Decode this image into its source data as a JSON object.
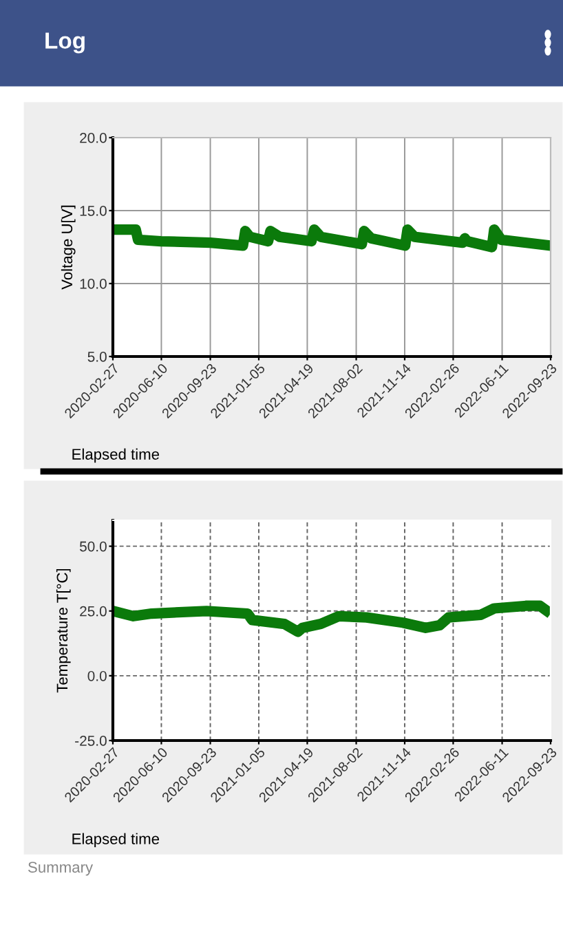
{
  "chart_data": [
    {
      "type": "line",
      "title": "Log",
      "ylabel": "Voltage U[V]",
      "xlabel": "Elapsed time",
      "x": [
        "2020-02-27",
        "2020-04-16",
        "2020-04-21",
        "2020-06-09",
        "2020-09-23",
        "2020-12-02",
        "2020-12-07",
        "2020-12-17",
        "2021-01-25",
        "2021-01-30",
        "2021-02-19",
        "2021-04-28",
        "2021-05-04",
        "2021-05-18",
        "2021-08-14",
        "2021-08-19",
        "2021-09-03",
        "2021-11-15",
        "2021-11-20",
        "2021-12-05",
        "2022-03-18",
        "2022-03-23",
        "2022-03-28",
        "2022-05-20",
        "2022-05-25",
        "2022-06-09",
        "2022-09-23"
      ],
      "series": [
        {
          "color": "#0b7a0b",
          "values": [
            13.7,
            13.7,
            13.0,
            12.9,
            12.8,
            12.6,
            13.6,
            13.2,
            12.9,
            13.6,
            13.2,
            12.9,
            13.7,
            13.2,
            12.7,
            13.6,
            13.1,
            12.6,
            13.7,
            13.2,
            12.8,
            13.1,
            12.9,
            12.5,
            13.7,
            13.0,
            12.6
          ]
        }
      ],
      "xlim": [
        "2020-02-27",
        "2022-09-23"
      ],
      "xticks": [
        "2020-02-27",
        "2020-06-10",
        "2020-09-23",
        "2021-01-05",
        "2021-04-19",
        "2021-08-02",
        "2021-11-14",
        "2022-02-26",
        "2022-06-11",
        "2022-09-23"
      ],
      "ylim": [
        5,
        20
      ],
      "yticks": [
        {
          "value": 5,
          "label": "5.0"
        },
        {
          "value": 10,
          "label": "10.0"
        },
        {
          "value": 15,
          "label": "15.0"
        },
        {
          "value": 20,
          "label": "20.0"
        }
      ],
      "grid": true,
      "line_style": "solid"
    },
    {
      "type": "line",
      "ylabel": "Temperature T[°C]",
      "xlabel": "Elapsed time",
      "annotations": [
        "Summary"
      ],
      "x": [
        "2020-02-27",
        "2020-04-11",
        "2020-05-20",
        "2020-09-15",
        "2020-12-12",
        "2020-12-22",
        "2021-03-01",
        "2021-03-30",
        "2021-04-09",
        "2021-05-18",
        "2021-06-26",
        "2021-08-24",
        "2021-11-10",
        "2021-12-29",
        "2022-01-28",
        "2022-02-16",
        "2022-04-26",
        "2022-05-25",
        "2022-08-02",
        "2022-08-31",
        "2022-09-23"
      ],
      "series": [
        {
          "color": "#0b7a0b",
          "values": [
            25,
            23,
            24,
            25,
            24,
            21.5,
            20,
            17,
            18.5,
            20,
            23,
            22.5,
            20.5,
            18.5,
            19.5,
            22.5,
            23.5,
            26,
            27,
            27,
            24
          ]
        }
      ],
      "xlim": [
        "2020-02-27",
        "2022-09-23"
      ],
      "xticks": [
        "2020-02-27",
        "2020-06-10",
        "2020-09-23",
        "2021-01-05",
        "2021-04-19",
        "2021-08-02",
        "2021-11-14",
        "2022-02-26",
        "2022-06-11",
        "2022-09-23"
      ],
      "ylim": [
        -25,
        60
      ],
      "yticks": [
        {
          "value": -25,
          "label": "-25.0"
        },
        {
          "value": 0,
          "label": "0.0"
        },
        {
          "value": 25,
          "label": "25.0"
        },
        {
          "value": 50,
          "label": "50.0"
        }
      ],
      "grid": true,
      "line_style": "solid"
    }
  ]
}
